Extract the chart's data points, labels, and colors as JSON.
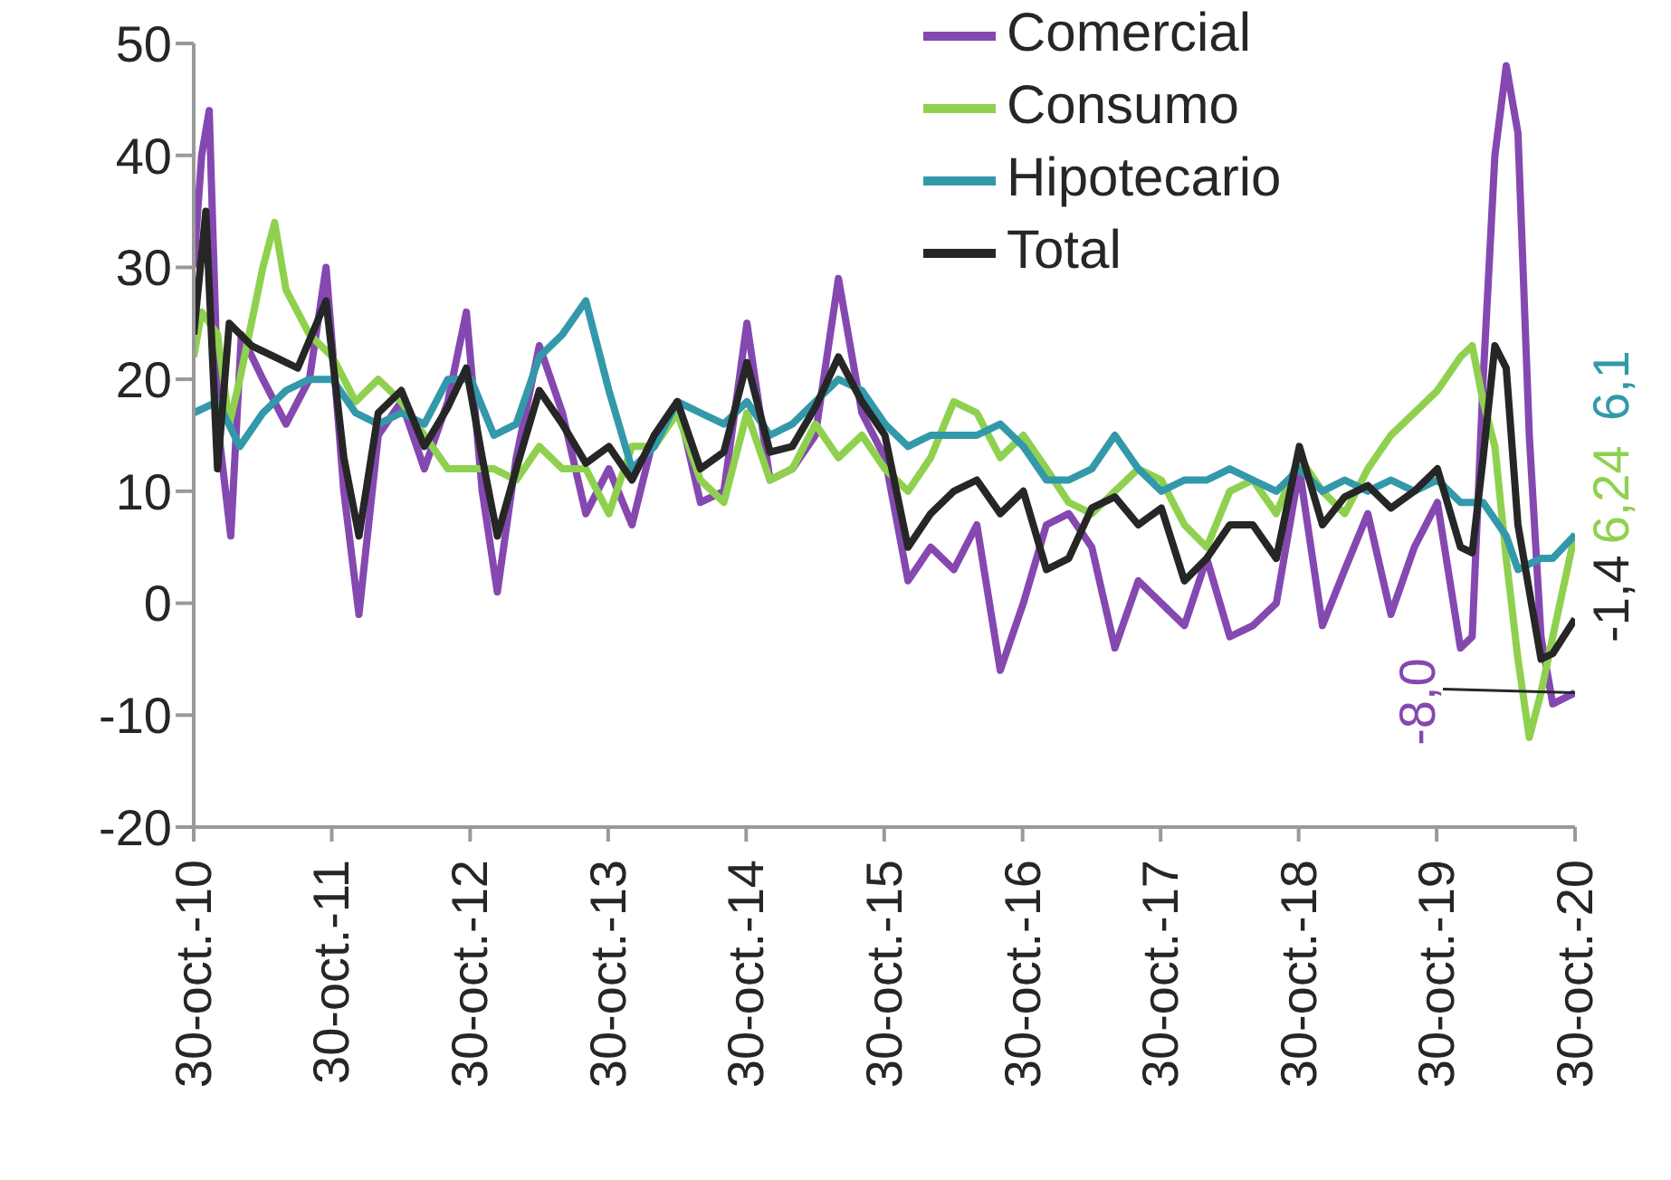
{
  "chart_data": {
    "type": "line",
    "xlim": [
      "2010-10-30",
      "2020-10-30"
    ],
    "xticks": [
      {
        "value": "2010-10-30",
        "label": "30-oct.-10"
      },
      {
        "value": "2011-10-30",
        "label": "30-oct.-11"
      },
      {
        "value": "2012-10-30",
        "label": "30-oct.-12"
      },
      {
        "value": "2013-10-30",
        "label": "30-oct.-13"
      },
      {
        "value": "2014-10-30",
        "label": "30-oct.-14"
      },
      {
        "value": "2015-10-30",
        "label": "30-oct.-15"
      },
      {
        "value": "2016-10-30",
        "label": "30-oct.-16"
      },
      {
        "value": "2017-10-30",
        "label": "30-oct.-17"
      },
      {
        "value": "2018-10-30",
        "label": "30-oct.-18"
      },
      {
        "value": "2019-10-30",
        "label": "30-oct.-19"
      },
      {
        "value": "2020-10-30",
        "label": "30-oct.-20"
      }
    ],
    "ylim": [
      -20,
      50
    ],
    "yticks": [
      -20,
      -10,
      0,
      10,
      20,
      30,
      40,
      50
    ],
    "grid": false,
    "legend": "top right",
    "marker": "none",
    "line_style": "solid",
    "series": [
      {
        "name": "Comercial",
        "color": "#8548b0",
        "x": [
          "2010-10-30",
          "2010-11-20",
          "2010-12-10",
          "2011-01-05",
          "2011-02-05",
          "2011-03-05",
          "2011-05-01",
          "2011-07-01",
          "2011-09-01",
          "2011-10-15",
          "2011-12-01",
          "2012-01-10",
          "2012-03-01",
          "2012-05-01",
          "2012-07-01",
          "2012-09-01",
          "2012-10-20",
          "2012-12-01",
          "2013-01-10",
          "2013-03-01",
          "2013-05-01",
          "2013-07-01",
          "2013-09-01",
          "2013-11-01",
          "2014-01-01",
          "2014-03-01",
          "2014-05-01",
          "2014-07-01",
          "2014-09-01",
          "2014-11-01",
          "2015-01-01",
          "2015-03-01",
          "2015-05-01",
          "2015-07-01",
          "2015-09-01",
          "2015-11-01",
          "2016-01-01",
          "2016-03-01",
          "2016-05-01",
          "2016-07-01",
          "2016-09-01",
          "2016-11-01",
          "2017-01-01",
          "2017-03-01",
          "2017-05-01",
          "2017-07-01",
          "2017-09-01",
          "2017-11-01",
          "2018-01-01",
          "2018-03-01",
          "2018-05-01",
          "2018-07-01",
          "2018-09-01",
          "2018-11-01",
          "2019-01-01",
          "2019-03-01",
          "2019-05-01",
          "2019-07-01",
          "2019-09-01",
          "2019-11-01",
          "2020-01-01",
          "2020-02-01",
          "2020-03-01",
          "2020-04-01",
          "2020-05-01",
          "2020-06-01",
          "2020-07-01",
          "2020-08-01",
          "2020-09-01",
          "2020-10-30"
        ],
        "values": [
          30,
          40,
          44,
          15,
          6,
          24,
          20,
          16,
          20,
          30,
          10,
          -1,
          15,
          18,
          12,
          18,
          26,
          10,
          1,
          13,
          23,
          17,
          8,
          12,
          7,
          15,
          18,
          9,
          10,
          25,
          11,
          12,
          15,
          29,
          17,
          13,
          2,
          5,
          3,
          7,
          -6,
          0,
          7,
          8,
          5,
          -4,
          2,
          0,
          -2,
          4,
          -3,
          -2,
          0,
          12,
          -2,
          3,
          8,
          -1,
          5,
          9,
          -4,
          -3,
          20,
          40,
          48,
          42,
          15,
          -3,
          -9,
          -8
        ]
      },
      {
        "name": "Consumo",
        "color": "#8fd14f",
        "x": [
          "2010-10-30",
          "2010-11-20",
          "2011-01-01",
          "2011-02-01",
          "2011-03-01",
          "2011-05-01",
          "2011-06-01",
          "2011-07-01",
          "2011-09-01",
          "2011-11-01",
          "2012-01-01",
          "2012-03-01",
          "2012-05-01",
          "2012-07-01",
          "2012-09-01",
          "2013-01-01",
          "2013-03-01",
          "2013-05-01",
          "2013-07-01",
          "2013-09-01",
          "2013-11-01",
          "2014-01-01",
          "2014-03-01",
          "2014-05-01",
          "2014-07-01",
          "2014-09-01",
          "2014-11-01",
          "2015-01-01",
          "2015-03-01",
          "2015-05-01",
          "2015-07-01",
          "2015-09-01",
          "2015-11-01",
          "2016-01-01",
          "2016-03-01",
          "2016-05-01",
          "2016-07-01",
          "2016-09-01",
          "2016-11-01",
          "2017-01-01",
          "2017-03-01",
          "2017-05-01",
          "2017-07-01",
          "2017-09-01",
          "2017-11-01",
          "2018-01-01",
          "2018-03-01",
          "2018-05-01",
          "2018-07-01",
          "2018-09-01",
          "2018-11-01",
          "2019-01-01",
          "2019-03-01",
          "2019-05-01",
          "2019-07-01",
          "2019-09-01",
          "2019-11-01",
          "2020-01-01",
          "2020-02-01",
          "2020-03-01",
          "2020-04-01",
          "2020-05-01",
          "2020-06-01",
          "2020-07-01",
          "2020-08-01",
          "2020-09-01",
          "2020-10-30"
        ],
        "values": [
          22,
          26,
          24,
          16,
          20,
          30,
          34,
          28,
          24,
          22,
          18,
          20,
          18,
          15,
          12,
          12,
          11,
          14,
          12,
          12,
          8,
          14,
          14,
          17,
          11,
          9,
          17,
          11,
          12,
          16,
          13,
          15,
          12,
          10,
          13,
          18,
          17,
          13,
          15,
          12,
          9,
          8,
          10,
          12,
          11,
          7,
          5,
          10,
          11,
          8,
          13,
          10,
          8,
          12,
          15,
          17,
          19,
          22,
          23,
          18,
          14,
          4,
          -5,
          -12,
          -8,
          -3,
          6.24
        ]
      },
      {
        "name": "Hipotecario",
        "color": "#3399aa",
        "x": [
          "2010-10-30",
          "2011-01-01",
          "2011-03-01",
          "2011-05-01",
          "2011-07-01",
          "2011-09-01",
          "2011-11-01",
          "2012-01-01",
          "2012-03-01",
          "2012-05-01",
          "2012-07-01",
          "2012-09-01",
          "2012-11-01",
          "2013-01-01",
          "2013-03-01",
          "2013-05-01",
          "2013-07-01",
          "2013-09-01",
          "2013-11-01",
          "2014-01-01",
          "2014-03-01",
          "2014-05-01",
          "2014-07-01",
          "2014-09-01",
          "2014-11-01",
          "2015-01-01",
          "2015-03-01",
          "2015-05-01",
          "2015-07-01",
          "2015-09-01",
          "2015-11-01",
          "2016-01-01",
          "2016-03-01",
          "2016-05-01",
          "2016-07-01",
          "2016-09-01",
          "2016-11-01",
          "2017-01-01",
          "2017-03-01",
          "2017-05-01",
          "2017-07-01",
          "2017-09-01",
          "2017-11-01",
          "2018-01-01",
          "2018-03-01",
          "2018-05-01",
          "2018-07-01",
          "2018-09-01",
          "2018-11-01",
          "2019-01-01",
          "2019-03-01",
          "2019-05-01",
          "2019-07-01",
          "2019-09-01",
          "2019-11-01",
          "2020-01-01",
          "2020-03-01",
          "2020-05-01",
          "2020-06-01",
          "2020-08-01",
          "2020-09-01",
          "2020-10-30"
        ],
        "values": [
          17,
          18,
          14,
          17,
          19,
          20,
          20,
          17,
          16,
          17,
          16,
          20,
          20,
          15,
          16,
          22,
          24,
          27,
          19,
          12,
          14,
          18,
          17,
          16,
          18,
          15,
          16,
          18,
          20,
          19,
          16,
          14,
          15,
          15,
          15,
          16,
          14,
          11,
          11,
          12,
          15,
          12,
          10,
          11,
          11,
          12,
          11,
          10,
          12,
          10,
          11,
          10,
          11,
          10,
          11,
          9,
          9,
          6,
          3,
          4,
          4,
          6.1
        ]
      },
      {
        "name": "Total",
        "color": "#262626",
        "x": [
          "2010-10-30",
          "2010-12-01",
          "2011-01-01",
          "2011-02-01",
          "2011-04-01",
          "2011-06-01",
          "2011-08-01",
          "2011-10-15",
          "2011-12-01",
          "2012-01-10",
          "2012-03-01",
          "2012-05-01",
          "2012-07-01",
          "2012-09-01",
          "2012-10-20",
          "2012-12-01",
          "2013-01-10",
          "2013-03-01",
          "2013-05-01",
          "2013-07-01",
          "2013-09-01",
          "2013-11-01",
          "2014-01-01",
          "2014-03-01",
          "2014-05-01",
          "2014-07-01",
          "2014-09-01",
          "2014-11-01",
          "2015-01-01",
          "2015-03-01",
          "2015-05-01",
          "2015-07-01",
          "2015-09-01",
          "2015-11-01",
          "2016-01-01",
          "2016-03-01",
          "2016-05-01",
          "2016-07-01",
          "2016-09-01",
          "2016-11-01",
          "2017-01-01",
          "2017-03-01",
          "2017-05-01",
          "2017-07-01",
          "2017-09-01",
          "2017-11-01",
          "2018-01-01",
          "2018-03-01",
          "2018-05-01",
          "2018-07-01",
          "2018-09-01",
          "2018-11-01",
          "2019-01-01",
          "2019-03-01",
          "2019-05-01",
          "2019-07-01",
          "2019-09-01",
          "2019-11-01",
          "2020-01-01",
          "2020-02-01",
          "2020-03-01",
          "2020-04-01",
          "2020-05-01",
          "2020-06-01",
          "2020-08-01",
          "2020-09-01",
          "2020-10-30"
        ],
        "values": [
          24,
          35,
          12,
          25,
          23,
          22,
          21,
          27,
          13,
          6,
          17,
          19,
          14,
          17.5,
          21,
          13,
          6,
          12,
          19,
          16,
          12.5,
          14,
          11,
          15,
          18,
          12,
          13.5,
          21.5,
          13.5,
          14,
          17.5,
          22,
          18,
          15,
          5,
          8,
          10,
          11,
          8,
          10,
          3,
          4,
          8.5,
          9.5,
          7,
          8.5,
          2,
          4,
          7,
          7,
          4,
          14,
          7,
          9.5,
          10.5,
          8.5,
          10,
          12,
          5,
          4.5,
          13,
          23,
          21,
          7,
          -5,
          -4.5,
          -1.4
        ]
      }
    ],
    "annotations": [
      {
        "text": "-8,0",
        "x": "2020-10-30",
        "y": -8
      },
      {
        "text": "-1,4",
        "x": "2020-10-30",
        "y": -1.4
      },
      {
        "text": "6,24",
        "x": "2020-10-30",
        "y": 6.24
      },
      {
        "text": "6,1",
        "x": "2020-10-30",
        "y": 6.1
      }
    ]
  }
}
